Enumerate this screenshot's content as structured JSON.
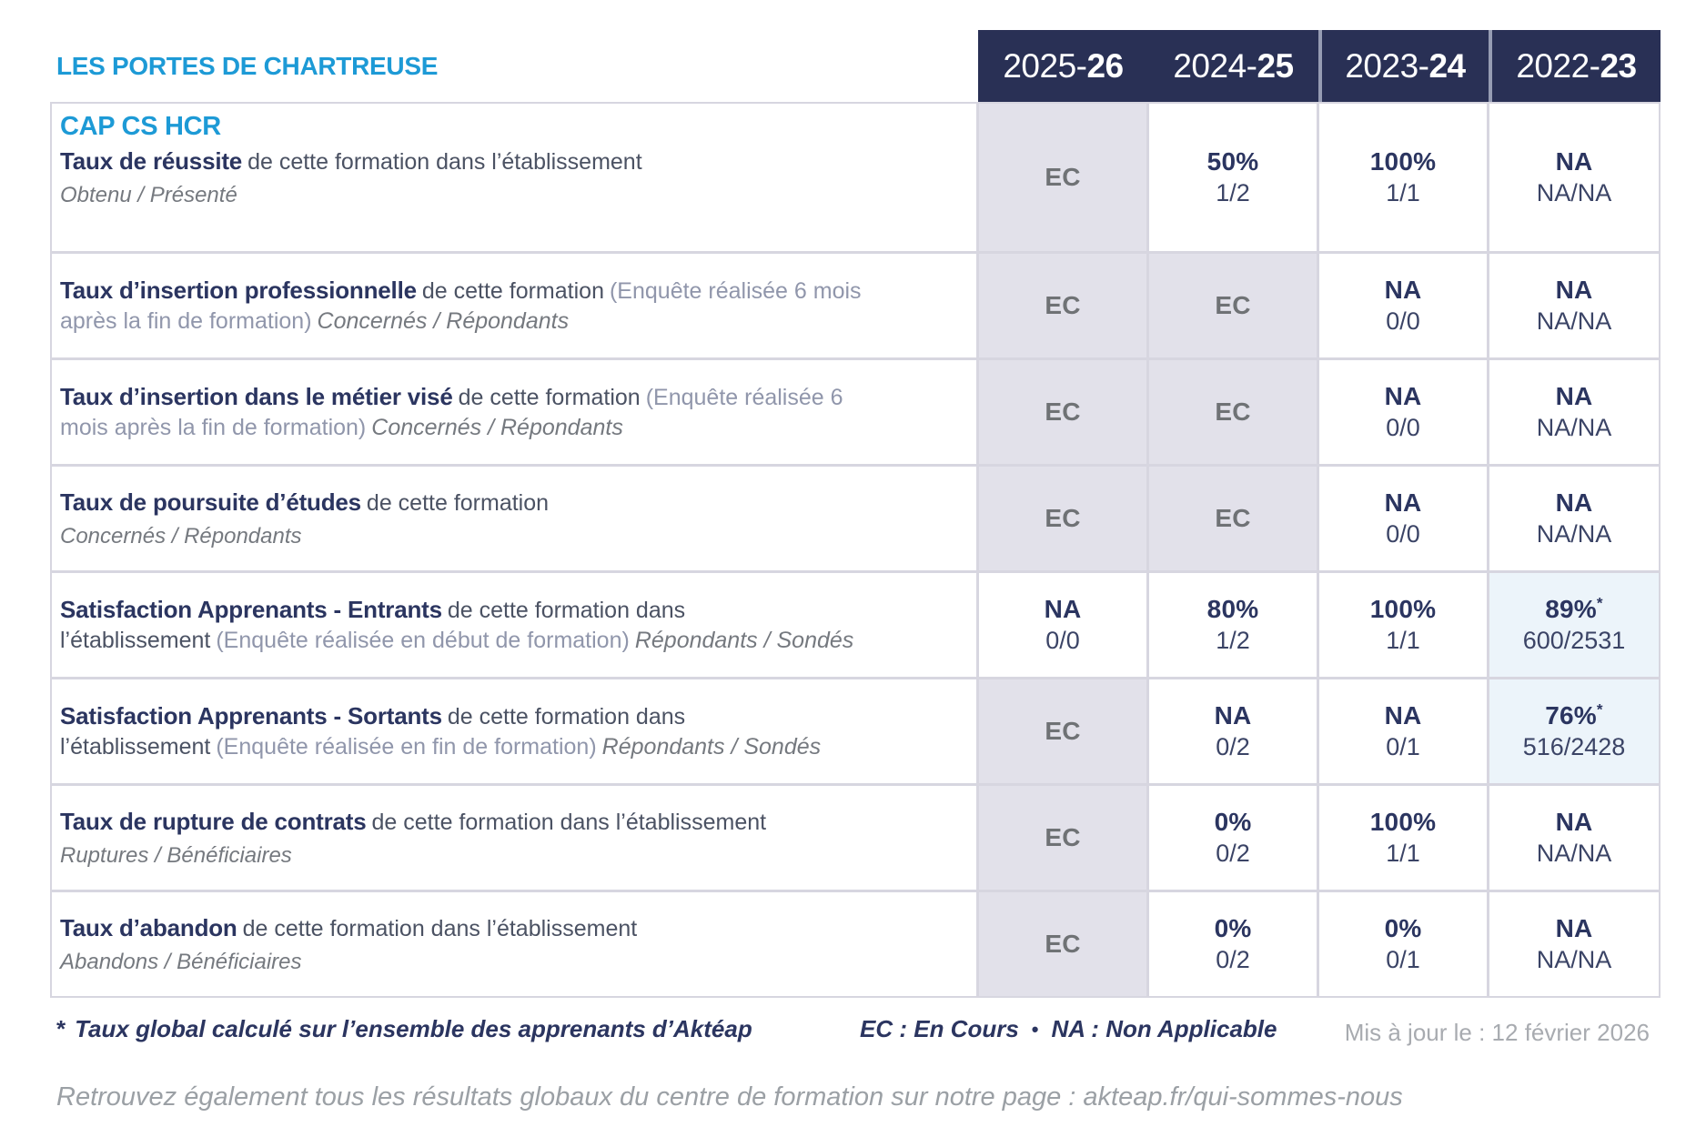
{
  "header": {
    "org_title": "LES PORTES DE CHARTREUSE",
    "years": [
      {
        "prefix": "2025-",
        "suffix": "26"
      },
      {
        "prefix": "2024-",
        "suffix": "25"
      },
      {
        "prefix": "2023-",
        "suffix": "24"
      },
      {
        "prefix": "2022-",
        "suffix": "23"
      }
    ]
  },
  "program": "CAP CS HCR",
  "rows": [
    {
      "title": "Taux de réussite",
      "desc": "de cette formation dans l’établissement",
      "sub": "Obtenu / Présenté",
      "cells": [
        {
          "main": "EC"
        },
        {
          "main": "50%",
          "sub": "1/2"
        },
        {
          "main": "100%",
          "sub": "1/1"
        },
        {
          "main": "NA",
          "sub": "NA/NA"
        }
      ]
    },
    {
      "title": "Taux d’insertion professionnelle",
      "desc": "de cette formation",
      "paren": "(Enquête réalisée 6 mois après la fin de formation)",
      "sub": "Concernés / Répondants",
      "cells": [
        {
          "main": "EC"
        },
        {
          "main": "EC"
        },
        {
          "main": "NA",
          "sub": "0/0"
        },
        {
          "main": "NA",
          "sub": "NA/NA"
        }
      ]
    },
    {
      "title": "Taux d’insertion dans le métier visé",
      "desc": "de cette formation",
      "paren": "(Enquête réalisée 6 mois après la fin de formation)",
      "sub": "Concernés / Répondants",
      "cells": [
        {
          "main": "EC"
        },
        {
          "main": "EC"
        },
        {
          "main": "NA",
          "sub": "0/0"
        },
        {
          "main": "NA",
          "sub": "NA/NA"
        }
      ]
    },
    {
      "title": "Taux de poursuite d’études",
      "desc": "de cette formation",
      "sub": "Concernés / Répondants",
      "cells": [
        {
          "main": "EC"
        },
        {
          "main": "EC"
        },
        {
          "main": "NA",
          "sub": "0/0"
        },
        {
          "main": "NA",
          "sub": "NA/NA"
        }
      ]
    },
    {
      "title": "Satisfaction Apprenants - Entrants",
      "desc": "de cette formation dans l’établissement",
      "paren": "(Enquête réalisée en début de formation)",
      "sub": "Répondants / Sondés",
      "cells": [
        {
          "main": "NA",
          "sub": "0/0"
        },
        {
          "main": "80%",
          "sub": "1/2"
        },
        {
          "main": "100%",
          "sub": "1/1"
        },
        {
          "main": "89%",
          "star": "*",
          "sub": "600/2531"
        }
      ]
    },
    {
      "title": "Satisfaction Apprenants - Sortants",
      "desc": "de cette formation dans l’établissement",
      "paren": "(Enquête réalisée en fin de formation)",
      "sub": "Répondants / Sondés",
      "cells": [
        {
          "main": "EC"
        },
        {
          "main": "NA",
          "sub": "0/2"
        },
        {
          "main": "NA",
          "sub": "0/1"
        },
        {
          "main": "76%",
          "star": "*",
          "sub": "516/2428"
        }
      ]
    },
    {
      "title": "Taux de rupture de contrats",
      "desc": "de cette formation dans l’établissement",
      "sub": "Ruptures / Bénéficiaires",
      "cells": [
        {
          "main": "EC"
        },
        {
          "main": "0%",
          "sub": "0/2"
        },
        {
          "main": "100%",
          "sub": "1/1"
        },
        {
          "main": "NA",
          "sub": "NA/NA"
        }
      ]
    },
    {
      "title": "Taux d’abandon",
      "desc": "de cette formation dans l’établissement",
      "sub": "Abandons / Bénéficiaires",
      "cells": [
        {
          "main": "EC"
        },
        {
          "main": "0%",
          "sub": "0/2"
        },
        {
          "main": "0%",
          "sub": "0/1"
        },
        {
          "main": "NA",
          "sub": "NA/NA"
        }
      ]
    }
  ],
  "footer": {
    "note_star": "*",
    "note": "Taux global calculé sur l’ensemble des apprenants d’Aktéap",
    "legend_ec": "EC : En Cours",
    "legend_bullet": "•",
    "legend_na": "NA : Non Applicable",
    "updated": "Mis à jour le : 12 février 2026",
    "info": "Retrouvez également tous les résultats globaux du centre de formation sur notre page : akteap.fr/qui-sommes-nous"
  },
  "colors": {
    "accent_blue": "#1d9ad6",
    "navy": "#293055",
    "cell_lavender": "#e2e1ea",
    "cell_lightblue": "#ecf4fa",
    "border": "#d7d6e0"
  }
}
